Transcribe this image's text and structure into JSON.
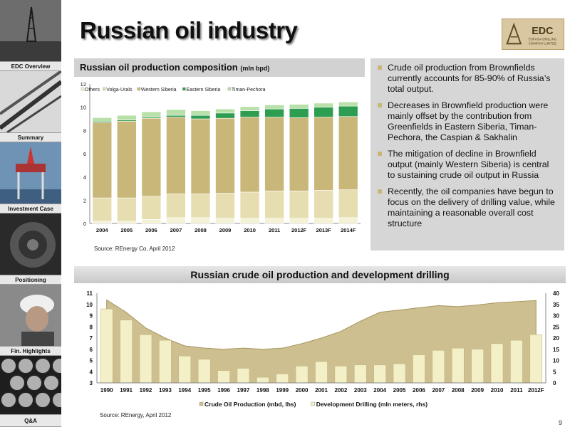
{
  "title": "Russian oil industry",
  "logo": {
    "name": "EDC",
    "subtitle1": "EURASIA DRILLING",
    "subtitle2": "COMPANY LIMITED"
  },
  "nav": {
    "items": [
      {
        "label": "EDC Overview"
      },
      {
        "label": "Summary"
      },
      {
        "label": "Investment Case"
      },
      {
        "label": "Positioning"
      },
      {
        "label": "Fin. Highlights"
      },
      {
        "label": "Q&A"
      }
    ]
  },
  "chart1": {
    "title": "Russian oil production composition",
    "unit": "(mln bpd)",
    "source": "Source: REnergy Co, April 2012"
  },
  "bullets": [
    "Crude oil production from Brownfields currently accounts for 85-90% of Russia’s total output.",
    "Decreases in Brownfield production were mainly offset by the contribution from Greenfields in Eastern Siberia, Timan-Pechora, the Caspian & Sakhalin",
    "The mitigation of decline in Brownfield output (mainly Western Siberia) is central to sustaining crude oil output in Russia",
    "Recently, the oil companies have begun to focus on the delivery of drilling value, while maintaining a reasonable overall cost structure"
  ],
  "chart2": {
    "title": "Russian crude oil production and development drilling",
    "source": "Source: REnergy, April 2012"
  },
  "page_number": "9",
  "colors": {
    "others": "#f3f1d6",
    "volga_urals": "#e6ddb0",
    "western_siberia": "#c9b77a",
    "eastern_siberia": "#2e9d52",
    "timan_pechora": "#b8e0a8",
    "area_fill": "#cdbf8f",
    "bar_fill": "#f3efc6"
  },
  "chart_data": [
    {
      "type": "bar",
      "stacked": true,
      "categories": [
        "2004",
        "2005",
        "2006",
        "2007",
        "2008",
        "2009",
        "2010",
        "2011",
        "2012F",
        "2013F",
        "2014F"
      ],
      "series": [
        {
          "name": "Others",
          "values": [
            0.2,
            0.2,
            0.35,
            0.5,
            0.5,
            0.45,
            0.45,
            0.45,
            0.45,
            0.45,
            0.5
          ]
        },
        {
          "name": "Volga-Urals",
          "values": [
            2.0,
            2.0,
            2.0,
            2.05,
            2.05,
            2.15,
            2.25,
            2.35,
            2.35,
            2.4,
            2.4
          ]
        },
        {
          "name": "Western Siberia",
          "values": [
            6.5,
            6.6,
            6.7,
            6.6,
            6.45,
            6.45,
            6.45,
            6.35,
            6.3,
            6.3,
            6.3
          ]
        },
        {
          "name": "Eastern Siberia",
          "values": [
            0.1,
            0.1,
            0.1,
            0.15,
            0.3,
            0.45,
            0.55,
            0.7,
            0.8,
            0.85,
            0.9
          ]
        },
        {
          "name": "Timan-Pechora",
          "values": [
            0.3,
            0.4,
            0.45,
            0.5,
            0.4,
            0.35,
            0.35,
            0.35,
            0.35,
            0.35,
            0.35
          ]
        }
      ],
      "ylim": [
        0,
        12
      ],
      "yticks": [
        "0",
        "2",
        "4",
        "6",
        "8",
        "10",
        "12"
      ],
      "legend": "top",
      "grid": false
    },
    {
      "type": "bar",
      "categories": [
        "1990",
        "1991",
        "1992",
        "1993",
        "1994",
        "1995",
        "1996",
        "1997",
        "1998",
        "1999",
        "2000",
        "2001",
        "2002",
        "2003",
        "2004",
        "2005",
        "2006",
        "2007",
        "2008",
        "2009",
        "2010",
        "2011",
        "2012F"
      ],
      "series": [
        {
          "name": "Crude Oil Production (mbd, lhs)",
          "chart": "area",
          "axis": "left",
          "values": [
            10.4,
            9.3,
            7.9,
            7.0,
            6.3,
            6.1,
            6.0,
            6.1,
            6.0,
            6.1,
            6.5,
            7.0,
            7.6,
            8.5,
            9.3,
            9.5,
            9.7,
            9.9,
            9.8,
            9.95,
            10.15,
            10.25,
            10.35
          ]
        },
        {
          "name": "Development Drilling (mln meters, rhs)",
          "chart": "bar",
          "axis": "right",
          "values": [
            33,
            28,
            21.5,
            19,
            12,
            10.5,
            5.5,
            6.5,
            2.5,
            4,
            7.5,
            9.5,
            7.5,
            8,
            8,
            8.5,
            12.5,
            14.5,
            15.5,
            15,
            17.5,
            19,
            21.5
          ]
        }
      ],
      "ylim_left": [
        3,
        11
      ],
      "ylim_right": [
        0,
        40
      ],
      "yticks_left": [
        "3",
        "4",
        "5",
        "6",
        "7",
        "8",
        "9",
        "10",
        "11"
      ],
      "yticks_right": [
        "0",
        "5",
        "10",
        "15",
        "20",
        "25",
        "30",
        "35",
        "40"
      ],
      "legend": "bottom",
      "grid": false
    }
  ]
}
